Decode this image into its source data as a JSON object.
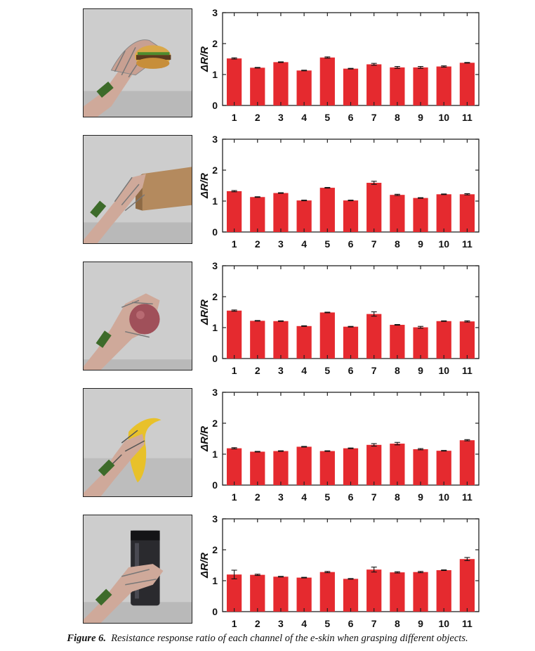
{
  "caption": {
    "label": "Figure 6.",
    "text": "Resistance response ratio of each channel of the e-skin when grasping different objects."
  },
  "colors": {
    "bar": "#e52a2f",
    "axis": "#222222"
  },
  "photos": [
    {
      "object_icon": "hamburger-icon",
      "object_color": "#d9a84a"
    },
    {
      "object_icon": "cardboard-box-icon",
      "object_color": "#b48a5e"
    },
    {
      "object_icon": "ball-icon",
      "object_color": "#a0505a"
    },
    {
      "object_icon": "banana-icon",
      "object_color": "#e8c12a"
    },
    {
      "object_icon": "bottle-icon",
      "object_color": "#2a2a2e"
    }
  ],
  "chart_data": [
    {
      "type": "bar",
      "ylabel": "ΔR/R",
      "ylim": [
        0,
        3
      ],
      "yticks": [
        0,
        1,
        2,
        3
      ],
      "categories": [
        "1",
        "2",
        "3",
        "4",
        "5",
        "6",
        "7",
        "8",
        "9",
        "10",
        "11"
      ],
      "values": [
        1.52,
        1.22,
        1.4,
        1.13,
        1.55,
        1.19,
        1.33,
        1.23,
        1.23,
        1.26,
        1.38
      ],
      "errors": [
        0.02,
        0.01,
        0.01,
        0.01,
        0.02,
        0.01,
        0.03,
        0.03,
        0.03,
        0.02,
        0.01
      ]
    },
    {
      "type": "bar",
      "ylabel": "ΔR/R",
      "ylim": [
        0,
        3
      ],
      "yticks": [
        0,
        1,
        2,
        3
      ],
      "categories": [
        "1",
        "2",
        "3",
        "4",
        "5",
        "6",
        "7",
        "8",
        "9",
        "10",
        "11"
      ],
      "values": [
        1.32,
        1.13,
        1.26,
        1.02,
        1.43,
        1.02,
        1.59,
        1.2,
        1.1,
        1.22,
        1.22
      ],
      "errors": [
        0.02,
        0.01,
        0.01,
        0.01,
        0.01,
        0.01,
        0.05,
        0.02,
        0.01,
        0.01,
        0.02
      ]
    },
    {
      "type": "bar",
      "ylabel": "ΔR/R",
      "ylim": [
        0,
        3
      ],
      "yticks": [
        0,
        1,
        2,
        3
      ],
      "categories": [
        "1",
        "2",
        "3",
        "4",
        "5",
        "6",
        "7",
        "8",
        "9",
        "10",
        "11"
      ],
      "values": [
        1.55,
        1.22,
        1.21,
        1.05,
        1.49,
        1.03,
        1.44,
        1.09,
        1.01,
        1.21,
        1.2
      ],
      "errors": [
        0.02,
        0.01,
        0.01,
        0.01,
        0.01,
        0.01,
        0.07,
        0.01,
        0.03,
        0.01,
        0.02
      ]
    },
    {
      "type": "bar",
      "ylabel": "ΔR/R",
      "ylim": [
        0,
        3
      ],
      "yticks": [
        0,
        1,
        2,
        3
      ],
      "categories": [
        "1",
        "2",
        "3",
        "4",
        "5",
        "6",
        "7",
        "8",
        "9",
        "10",
        "11"
      ],
      "values": [
        1.19,
        1.08,
        1.1,
        1.24,
        1.1,
        1.19,
        1.3,
        1.34,
        1.16,
        1.11,
        1.45
      ],
      "errors": [
        0.02,
        0.01,
        0.01,
        0.01,
        0.01,
        0.01,
        0.04,
        0.04,
        0.02,
        0.01,
        0.02
      ]
    },
    {
      "type": "bar",
      "ylabel": "ΔR/R",
      "ylim": [
        0,
        3
      ],
      "yticks": [
        0,
        1,
        2,
        3
      ],
      "categories": [
        "1",
        "2",
        "3",
        "4",
        "5",
        "6",
        "7",
        "8",
        "9",
        "10",
        "11"
      ],
      "values": [
        1.2,
        1.19,
        1.13,
        1.1,
        1.28,
        1.06,
        1.36,
        1.27,
        1.28,
        1.34,
        1.7
      ],
      "errors": [
        0.14,
        0.02,
        0.01,
        0.01,
        0.02,
        0.01,
        0.08,
        0.02,
        0.02,
        0.01,
        0.05
      ]
    }
  ]
}
